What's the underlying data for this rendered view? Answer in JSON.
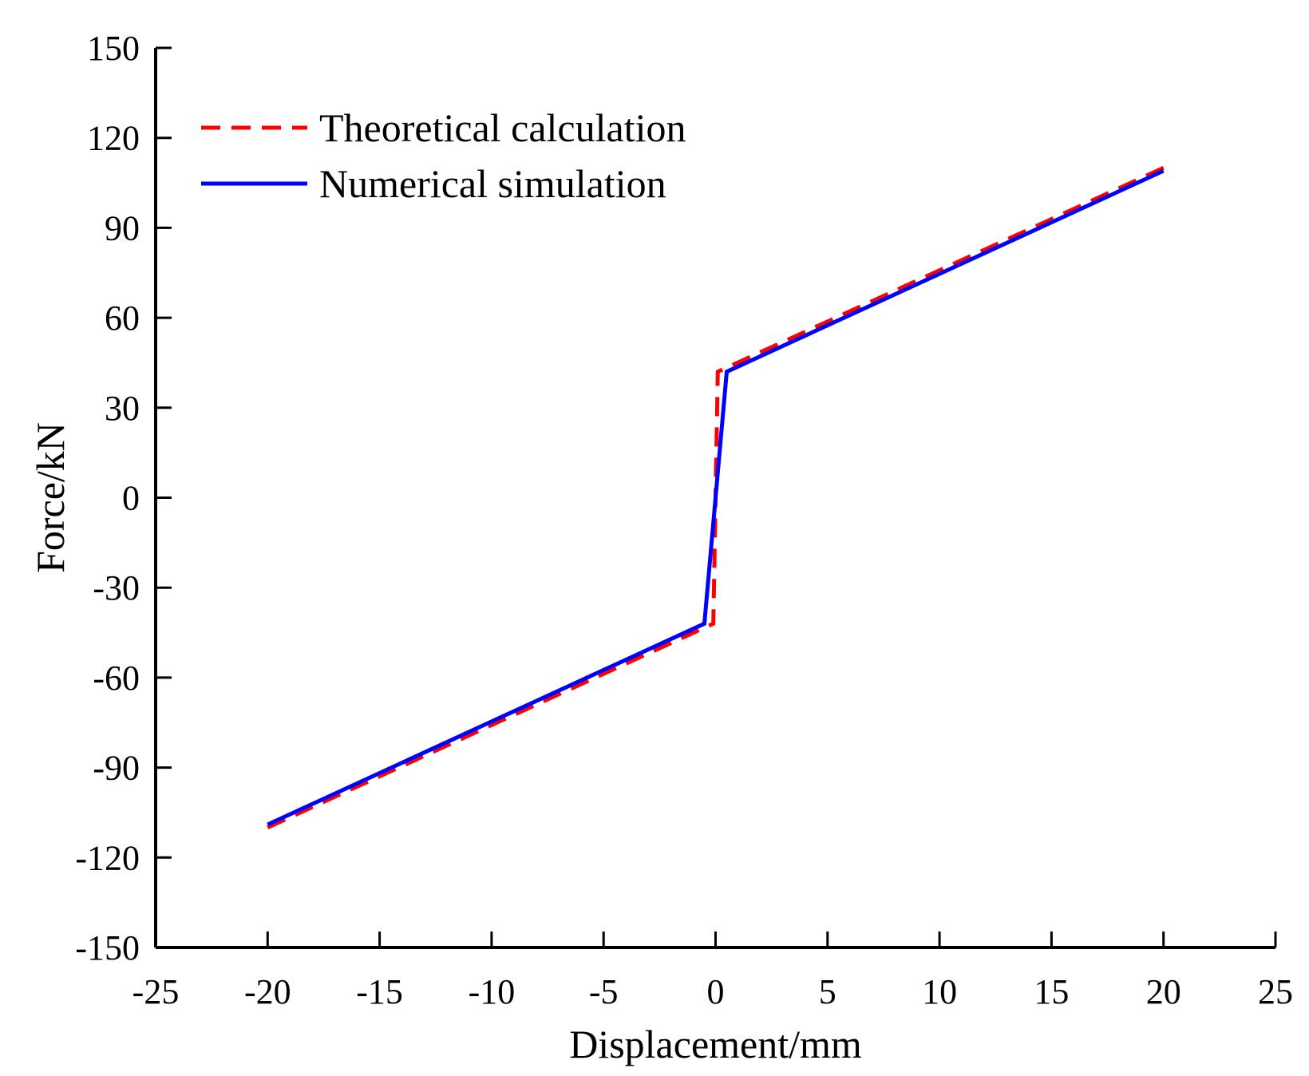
{
  "chart_data": {
    "type": "line",
    "title": "",
    "xlabel": "Displacement/mm",
    "ylabel": "Force/kN",
    "xlim": [
      -25,
      25
    ],
    "ylim": [
      -150,
      150
    ],
    "xticks": [
      -25,
      -20,
      -15,
      -10,
      -5,
      0,
      5,
      10,
      15,
      20,
      25
    ],
    "yticks": [
      -150,
      -120,
      -90,
      -60,
      -30,
      0,
      30,
      60,
      90,
      120,
      150
    ],
    "grid": false,
    "legend": "top-left",
    "series": [
      {
        "name": "Theoretical calculation",
        "color": "#ff0000",
        "style": "dashed",
        "x": [
          -20,
          -0.1,
          0.1,
          20
        ],
        "y": [
          -110,
          -42,
          42,
          110
        ]
      },
      {
        "name": "Numerical simulation",
        "color": "#0000ff",
        "style": "solid",
        "x": [
          -20,
          -0.5,
          0.5,
          20
        ],
        "y": [
          -109,
          -42,
          42,
          109
        ]
      }
    ]
  }
}
